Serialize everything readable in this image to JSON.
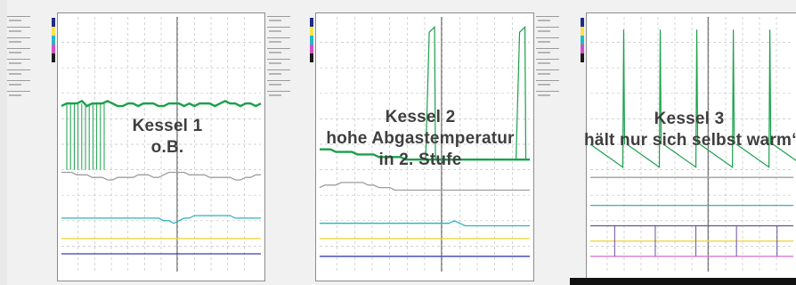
{
  "colors": {
    "green": "#1aa14a",
    "gray": "#9e9e9e",
    "cyan": "#2bb3c0",
    "yellow": "#f0d64a",
    "purple": "#6a4fa0",
    "blue": "#3b3fb0",
    "pink": "#d47ad0",
    "strip": [
      "#1f2a8a",
      "#f4e64b",
      "#25b7c8",
      "#d34fc8",
      "#1c1c1c"
    ]
  },
  "chart_data": [
    {
      "type": "line",
      "caption_lines": [
        "Kessel 1",
        "o.B."
      ],
      "series": [
        {
          "color": "green",
          "values": [
            35,
            34,
            34,
            34,
            33,
            35,
            34,
            34,
            34,
            33,
            34,
            35,
            35,
            34,
            34,
            35,
            34,
            34,
            34,
            35,
            35,
            34,
            34,
            34,
            35,
            34,
            35,
            34,
            34,
            34,
            35,
            34,
            33,
            34,
            34,
            35,
            34,
            34,
            35,
            34
          ]
        },
        {
          "color": "gray",
          "values": [
            61,
            61,
            61,
            62,
            62,
            62,
            63,
            63,
            63,
            64,
            64,
            63,
            63,
            63,
            63,
            62,
            62,
            62,
            63,
            63,
            62,
            61,
            61,
            61,
            61,
            62,
            62,
            62,
            62,
            63,
            63,
            63,
            63,
            63,
            64,
            64,
            63,
            63,
            62,
            62
          ]
        },
        {
          "color": "cyan",
          "values": [
            79,
            79,
            79,
            79,
            79,
            79,
            79,
            79,
            79,
            79,
            79,
            79,
            79,
            79,
            79,
            79,
            79,
            79,
            79,
            79,
            80,
            80,
            81,
            80,
            79,
            79,
            78,
            78,
            78,
            78,
            78,
            78,
            78,
            78,
            79,
            79,
            79,
            79,
            79,
            79
          ]
        },
        {
          "color": "yellow",
          "values": [
            87,
            87,
            87,
            87,
            87,
            87,
            87,
            87,
            87,
            87,
            87,
            87,
            87,
            87,
            87,
            87,
            87,
            87,
            87,
            87,
            87,
            87,
            87,
            87,
            87,
            87,
            87,
            87,
            87,
            87,
            87,
            87,
            87,
            87,
            87,
            87,
            87,
            87,
            87,
            87
          ]
        },
        {
          "color": "blue",
          "values": [
            93,
            93,
            93,
            93,
            93,
            93,
            93,
            93,
            93,
            93,
            93,
            93,
            93,
            93,
            93,
            93,
            93,
            93,
            93,
            93,
            93,
            93,
            93,
            93,
            93,
            93,
            93,
            93,
            93,
            93,
            93,
            93,
            93,
            93,
            93,
            93,
            93,
            93,
            93,
            93
          ]
        }
      ]
    },
    {
      "type": "line",
      "caption_lines": [
        "Kessel 2",
        "hohe Abgastemperatur",
        "in 2. Stufe"
      ],
      "series": [
        {
          "color": "green",
          "values": [
            52,
            52,
            52,
            53,
            53,
            53,
            53,
            54,
            54,
            54,
            54,
            55,
            55,
            55,
            55,
            55,
            56,
            56,
            56,
            56,
            56,
            56,
            56,
            56,
            56,
            56,
            56,
            56,
            56,
            56,
            56,
            56,
            56,
            56,
            56,
            56,
            56,
            56,
            56,
            56
          ]
        },
        {
          "color": "gray",
          "values": [
            67,
            66,
            66,
            66,
            65,
            65,
            65,
            65,
            65,
            66,
            66,
            67,
            67,
            67,
            68,
            68,
            68,
            68,
            68,
            68,
            68,
            68,
            68,
            68,
            68,
            68,
            68,
            68,
            68,
            68,
            68,
            68,
            68,
            68,
            68,
            68,
            68,
            68,
            68,
            68
          ]
        },
        {
          "color": "cyan",
          "values": [
            81,
            81,
            81,
            81,
            81,
            81,
            81,
            81,
            81,
            81,
            81,
            81,
            81,
            81,
            81,
            81,
            81,
            81,
            81,
            81,
            81,
            81,
            81,
            81,
            81,
            80,
            81,
            82,
            82,
            82,
            82,
            82,
            82,
            82,
            82,
            82,
            82,
            82,
            82,
            82
          ]
        },
        {
          "color": "yellow",
          "values": [
            87,
            87,
            87,
            87,
            87,
            87,
            87,
            87,
            87,
            87,
            87,
            87,
            87,
            87,
            87,
            87,
            87,
            87,
            87,
            87,
            87,
            87,
            87,
            87,
            87,
            87,
            87,
            87,
            87,
            87,
            87,
            87,
            87,
            87,
            87,
            87,
            87,
            87,
            87,
            87
          ]
        },
        {
          "color": "blue",
          "values": [
            94,
            94,
            94,
            94,
            94,
            94,
            94,
            94,
            94,
            94,
            94,
            94,
            94,
            94,
            94,
            94,
            94,
            94,
            94,
            94,
            94,
            94,
            94,
            94,
            94,
            94,
            94,
            94,
            94,
            94,
            94,
            94,
            94,
            94,
            94,
            94,
            94,
            94,
            94,
            94
          ]
        }
      ]
    },
    {
      "type": "line",
      "caption_lines": [
        "Kessel 3",
        "hält nur sich selbst warm“"
      ],
      "series": [
        {
          "color": "gray",
          "values": [
            63,
            63,
            63,
            63,
            63,
            63,
            63,
            63,
            63,
            63,
            63,
            63,
            63,
            63,
            63,
            63,
            63,
            63,
            63,
            63,
            63,
            63,
            63,
            63,
            63,
            63,
            63,
            63,
            63,
            63,
            63,
            63,
            63,
            63,
            63,
            63,
            63,
            63,
            63,
            63
          ]
        },
        {
          "color": "cyan",
          "values": [
            74,
            74,
            74,
            74,
            74,
            74,
            74,
            74,
            74,
            74,
            74,
            74,
            74,
            74,
            74,
            74,
            74,
            74,
            74,
            74,
            74,
            74,
            74,
            74,
            74,
            74,
            74,
            74,
            74,
            74,
            74,
            74,
            74,
            74,
            74,
            74,
            74,
            74,
            74,
            74
          ]
        },
        {
          "color": "purple",
          "values": [
            82,
            82,
            82,
            82,
            82,
            82,
            82,
            82,
            82,
            82,
            82,
            82,
            82,
            82,
            82,
            82,
            82,
            82,
            82,
            82,
            82,
            82,
            82,
            82,
            82,
            82,
            82,
            82,
            82,
            82,
            82,
            82,
            82,
            82,
            82,
            82,
            82,
            82,
            82,
            82
          ]
        },
        {
          "color": "yellow",
          "values": [
            88,
            88,
            88,
            88,
            88,
            88,
            88,
            88,
            88,
            88,
            88,
            88,
            88,
            88,
            88,
            88,
            88,
            88,
            88,
            88,
            88,
            88,
            88,
            88,
            88,
            88,
            88,
            88,
            88,
            88,
            88,
            88,
            88,
            88,
            88,
            88,
            88,
            88,
            88,
            88
          ]
        },
        {
          "color": "pink",
          "values": [
            94,
            94,
            94,
            94,
            94,
            94,
            94,
            94,
            94,
            94,
            94,
            94,
            94,
            94,
            94,
            94,
            94,
            94,
            94,
            94,
            94,
            94,
            94,
            94,
            94,
            94,
            94,
            94,
            94,
            94,
            94,
            94,
            94,
            94,
            94,
            94,
            94,
            94,
            94,
            94
          ]
        }
      ]
    }
  ]
}
